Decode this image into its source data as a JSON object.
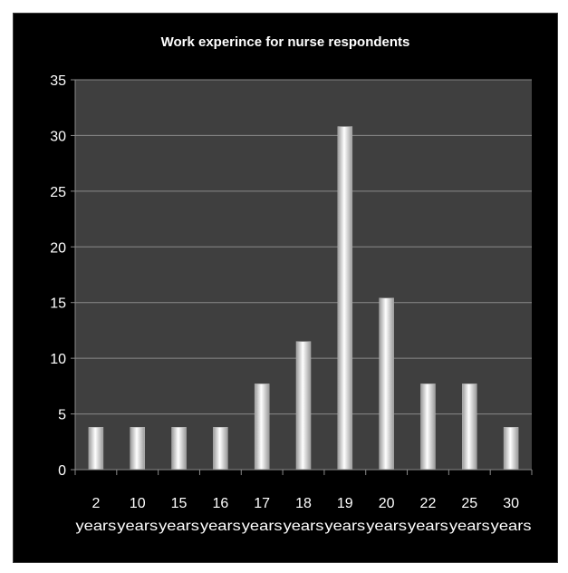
{
  "chart_data": {
    "type": "bar",
    "title": "Work experince for nurse respondents",
    "xlabel": "",
    "ylabel": "",
    "categories": [
      [
        "2",
        "years"
      ],
      [
        "10",
        "years"
      ],
      [
        "15",
        "years"
      ],
      [
        "16",
        "years"
      ],
      [
        "17",
        "years"
      ],
      [
        "18",
        "years"
      ],
      [
        "19",
        "years"
      ],
      [
        "20",
        "years"
      ],
      [
        "22",
        "years"
      ],
      [
        "25",
        "years"
      ],
      [
        "30",
        "years"
      ]
    ],
    "values": [
      3.8,
      3.8,
      3.8,
      3.8,
      7.7,
      11.5,
      30.8,
      15.4,
      7.7,
      7.7,
      3.8
    ],
    "ylim": [
      0,
      35
    ],
    "yticks": [
      0,
      5,
      10,
      15,
      20,
      25,
      30,
      35
    ],
    "grid": true,
    "legend": "none",
    "colors": {
      "background": "#000000",
      "plot_area": "#3f3f3f",
      "gridline": "#8a8a8a",
      "bar_light": "#ffffff",
      "bar_dark": "#9a9a9a",
      "text": "#ffffff"
    }
  }
}
